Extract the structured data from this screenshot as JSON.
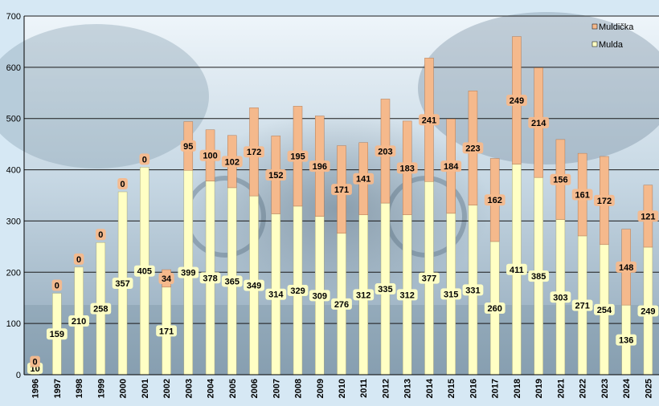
{
  "chart_data": {
    "type": "bar",
    "stacked": true,
    "categories": [
      "1996",
      "1997",
      "1998",
      "1999",
      "2000",
      "2001",
      "2002",
      "2003",
      "2004",
      "2005",
      "2006",
      "2007",
      "2008",
      "2009",
      "2010",
      "2011",
      "2012",
      "2013",
      "2014",
      "2015",
      "2016",
      "2017",
      "2018",
      "2019",
      "2021",
      "2022",
      "2023",
      "2024",
      "2025"
    ],
    "series": [
      {
        "name": "Mulda",
        "color": "#ffffc4",
        "values": [
          10,
          159,
          210,
          258,
          357,
          405,
          171,
          399,
          378,
          365,
          349,
          314,
          329,
          309,
          276,
          312,
          335,
          312,
          377,
          315,
          331,
          260,
          411,
          385,
          303,
          271,
          254,
          136,
          249
        ]
      },
      {
        "name": "Muldička",
        "color": "#f5b98c",
        "values": [
          0,
          0,
          0,
          0,
          0,
          0,
          34,
          95,
          100,
          102,
          172,
          152,
          195,
          196,
          171,
          141,
          203,
          183,
          241,
          184,
          223,
          162,
          249,
          214,
          156,
          161,
          172,
          148,
          121
        ]
      }
    ],
    "data_labels": {
      "Mulda": [
        "10",
        "159",
        "210",
        "258",
        "357",
        "405",
        "171",
        "399",
        "378",
        "365",
        "349",
        "314",
        "329",
        "309",
        "276",
        "312",
        "335",
        "312",
        "377",
        "315",
        "331",
        "260",
        "411",
        "385",
        "303",
        "271",
        "254",
        "136",
        "249"
      ],
      "Muldička": [
        "0",
        "0",
        "0",
        "0",
        "0",
        "0",
        "34",
        "95",
        "100",
        "102",
        "172",
        "152",
        "195",
        "196",
        "171",
        "141",
        "203",
        "183",
        "241",
        "184",
        "223",
        "162",
        "249",
        "214",
        "156",
        "161",
        "172",
        "148",
        "121"
      ]
    },
    "ylim": [
      0,
      700
    ],
    "yticks": [
      "0",
      "100",
      "200",
      "300",
      "400",
      "500",
      "600",
      "700"
    ],
    "grid": true,
    "legend_position": "top-right",
    "background": "faded blue-tinted photograph",
    "title": "",
    "xlabel": "",
    "ylabel": ""
  }
}
